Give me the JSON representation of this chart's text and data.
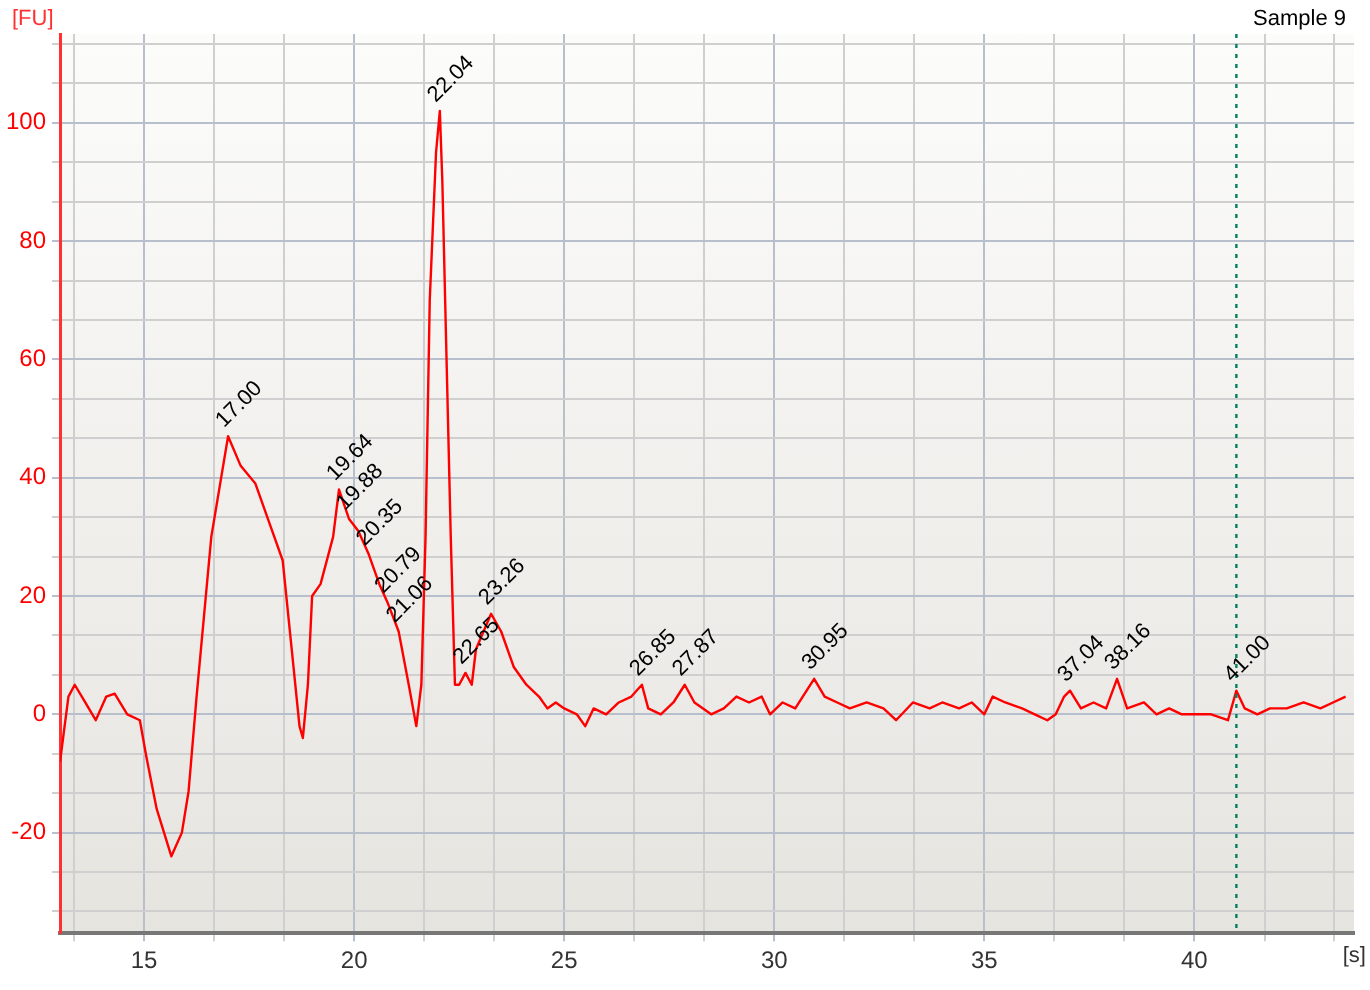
{
  "chart_data": {
    "type": "line",
    "title": "Sample 9",
    "xlabel": "[s]",
    "ylabel": "[FU]",
    "xlim": [
      13,
      43.8
    ],
    "ylim": [
      -37,
      115
    ],
    "xticks": [
      {
        "value": 13.33,
        "label": null
      },
      15,
      {
        "value": 16.67,
        "label": null
      },
      {
        "value": 18.33,
        "label": null
      },
      20,
      {
        "value": 21.67,
        "label": null
      },
      {
        "value": 23.33,
        "label": null
      },
      25,
      {
        "value": 26.67,
        "label": null
      },
      {
        "value": 28.33,
        "label": null
      },
      30,
      {
        "value": 31.67,
        "label": null
      },
      {
        "value": 33.33,
        "label": null
      },
      35,
      {
        "value": 36.67,
        "label": null
      },
      {
        "value": 38.33,
        "label": null
      },
      40,
      {
        "value": 41.67,
        "label": null
      },
      {
        "value": 43.33,
        "label": null
      }
    ],
    "yticks": [
      {
        "value": -33.33,
        "label": null
      },
      {
        "value": -26.67,
        "label": null
      },
      -20,
      {
        "value": -13.33,
        "label": null
      },
      {
        "value": -6.67,
        "label": null
      },
      0,
      {
        "value": 6.67,
        "label": null
      },
      {
        "value": 13.33,
        "label": null
      },
      20,
      {
        "value": 26.67,
        "label": null
      },
      {
        "value": 33.33,
        "label": null
      },
      40,
      {
        "value": 46.67,
        "label": null
      },
      {
        "value": 53.33,
        "label": null
      },
      60,
      {
        "value": 66.67,
        "label": null
      },
      {
        "value": 73.33,
        "label": null
      },
      80,
      {
        "value": 86.67,
        "label": null
      },
      {
        "value": 93.33,
        "label": null
      },
      100,
      {
        "value": 106.67,
        "label": null
      },
      {
        "value": 113.33,
        "label": null
      }
    ],
    "grid": true,
    "legend": false,
    "marker": "none",
    "line_style": "solid",
    "series": [
      {
        "color": "#ff0000",
        "x": [
          13.0,
          13.2,
          13.35,
          13.6,
          13.85,
          14.1,
          14.3,
          14.6,
          14.9,
          15.05,
          15.3,
          15.65,
          15.9,
          16.06,
          16.25,
          16.6,
          17.0,
          17.3,
          17.65,
          17.95,
          18.3,
          18.5,
          18.7,
          18.78,
          18.9,
          19.0,
          19.2,
          19.5,
          19.64,
          19.88,
          20.1,
          20.35,
          20.6,
          20.79,
          21.06,
          21.3,
          21.48,
          21.6,
          21.7,
          21.8,
          21.95,
          22.04,
          22.1,
          22.2,
          22.3,
          22.4,
          22.5,
          22.65,
          22.8,
          22.9,
          23.26,
          23.5,
          23.8,
          24.1,
          24.4,
          24.6,
          24.8,
          25.0,
          25.3,
          25.5,
          25.7,
          26.0,
          26.3,
          26.6,
          26.85,
          27.0,
          27.3,
          27.6,
          27.87,
          28.1,
          28.5,
          28.8,
          29.1,
          29.4,
          29.7,
          29.9,
          30.2,
          30.5,
          30.95,
          31.2,
          31.5,
          31.8,
          32.2,
          32.6,
          32.9,
          33.3,
          33.7,
          34.0,
          34.4,
          34.7,
          35.0,
          35.2,
          35.5,
          35.9,
          36.2,
          36.5,
          36.7,
          36.9,
          37.04,
          37.3,
          37.6,
          37.9,
          38.16,
          38.4,
          38.8,
          39.1,
          39.4,
          39.7,
          40.0,
          40.4,
          40.8,
          41.0,
          41.2,
          41.5,
          41.8,
          42.2,
          42.6,
          43.0,
          43.3,
          43.6
        ],
        "values": [
          -8,
          3,
          5,
          2,
          -1,
          3,
          3.5,
          0,
          -1,
          -7,
          -16,
          -24,
          -20,
          -13,
          3,
          30,
          47,
          42,
          39,
          33,
          26,
          12,
          -2,
          -4,
          5,
          20,
          22,
          30,
          38,
          33,
          31,
          27,
          22,
          19,
          14,
          5,
          -2,
          5,
          30,
          70,
          95,
          102,
          90,
          60,
          30,
          5,
          5,
          7,
          5,
          11,
          17,
          14,
          8,
          5,
          3,
          1,
          2,
          1,
          0,
          -2,
          1,
          0,
          2,
          3,
          5,
          1,
          0,
          2,
          5,
          2,
          0,
          1,
          3,
          2,
          3,
          0,
          2,
          1,
          6,
          3,
          2,
          1,
          2,
          1,
          -1,
          2,
          1,
          2,
          1,
          2,
          0,
          3,
          2,
          1,
          0,
          -1,
          0,
          3,
          4,
          1,
          2,
          1,
          6,
          1,
          2,
          0,
          1,
          0,
          0,
          0,
          -1,
          4,
          1,
          0,
          1,
          1,
          2,
          1,
          2,
          3
        ]
      }
    ],
    "annotations": [
      {
        "text": "17.00",
        "x": 17.0,
        "y": 47
      },
      {
        "text": "19.64",
        "x": 19.64,
        "y": 38
      },
      {
        "text": "19.88",
        "x": 19.88,
        "y": 33
      },
      {
        "text": "20.35",
        "x": 20.35,
        "y": 27
      },
      {
        "text": "20.79",
        "x": 20.79,
        "y": 19
      },
      {
        "text": "21.06",
        "x": 21.06,
        "y": 14
      },
      {
        "text": "22.04",
        "x": 22.04,
        "y": 102
      },
      {
        "text": "22.65",
        "x": 22.65,
        "y": 7
      },
      {
        "text": "23.26",
        "x": 23.26,
        "y": 17
      },
      {
        "text": "26.85",
        "x": 26.85,
        "y": 5
      },
      {
        "text": "27.87",
        "x": 27.87,
        "y": 5
      },
      {
        "text": "30.95",
        "x": 30.95,
        "y": 6
      },
      {
        "text": "37.04",
        "x": 37.04,
        "y": 4
      },
      {
        "text": "38.16",
        "x": 38.16,
        "y": 6
      },
      {
        "text": "41.00",
        "x": 41.0,
        "y": 4
      }
    ],
    "ref_lines": [
      {
        "axis": "x",
        "value": 41,
        "color": "#008060",
        "line_style": "dotted"
      }
    ]
  }
}
